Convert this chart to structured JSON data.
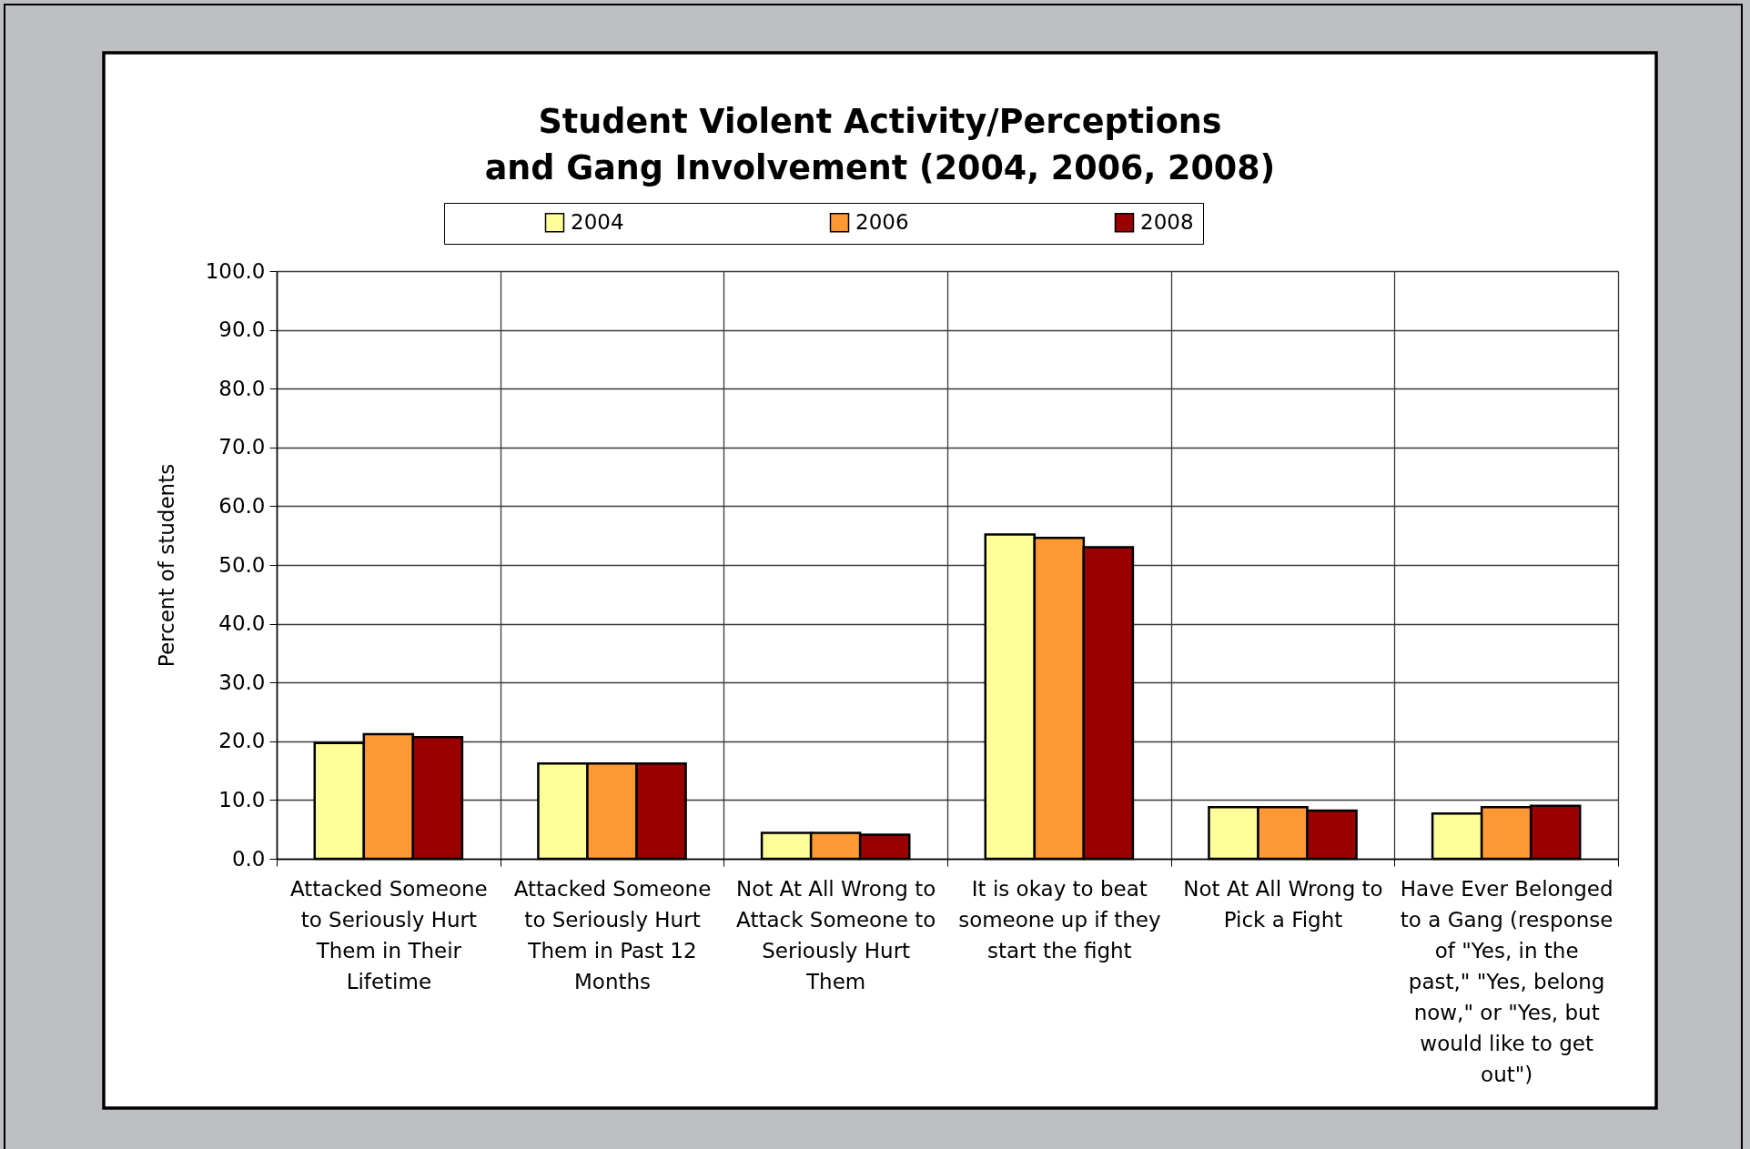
{
  "chart_data": {
    "type": "bar",
    "title": "Student Violent Activity/Perceptions and Gang Involvement (2004, 2006, 2008)",
    "ylabel": "Percent of students",
    "categories": [
      "Attacked Someone to Seriously Hurt Them in Their Lifetime",
      "Attacked Someone to Seriously Hurt Them in Past 12 Months",
      "Not At All Wrong to Attack Someone to Seriously Hurt Them",
      "It is okay to beat someone up if they start the fight",
      "Not At All Wrong to Pick a Fight",
      "Have Ever Belonged to a Gang (response of \"Yes, in the past,\" \"Yes, belong now,\" or \"Yes, but would like to get out\")"
    ],
    "series": [
      {
        "name": "2004",
        "color": "#ffff99",
        "values": [
          19.7,
          16.2,
          4.4,
          55.2,
          8.8,
          7.7
        ]
      },
      {
        "name": "2006",
        "color": "#ff9933",
        "values": [
          21.2,
          16.2,
          4.4,
          54.6,
          8.8,
          8.8
        ]
      },
      {
        "name": "2008",
        "color": "#990000",
        "values": [
          20.7,
          16.2,
          4.1,
          53.0,
          8.2,
          9.0
        ]
      }
    ],
    "ylim": [
      0,
      100
    ],
    "yticks": [
      {
        "value": 0,
        "label": "0.0"
      },
      {
        "value": 10,
        "label": "10.0"
      },
      {
        "value": 20,
        "label": "20.0"
      },
      {
        "value": 30,
        "label": "30.0"
      },
      {
        "value": 40,
        "label": "40.0"
      },
      {
        "value": 50,
        "label": "50.0"
      },
      {
        "value": 60,
        "label": "60.0"
      },
      {
        "value": 70,
        "label": "70.0"
      },
      {
        "value": 80,
        "label": "80.0"
      },
      {
        "value": 90,
        "label": "90.0"
      },
      {
        "value": 100,
        "label": "100.0"
      }
    ],
    "grid": true,
    "legend": "top"
  }
}
